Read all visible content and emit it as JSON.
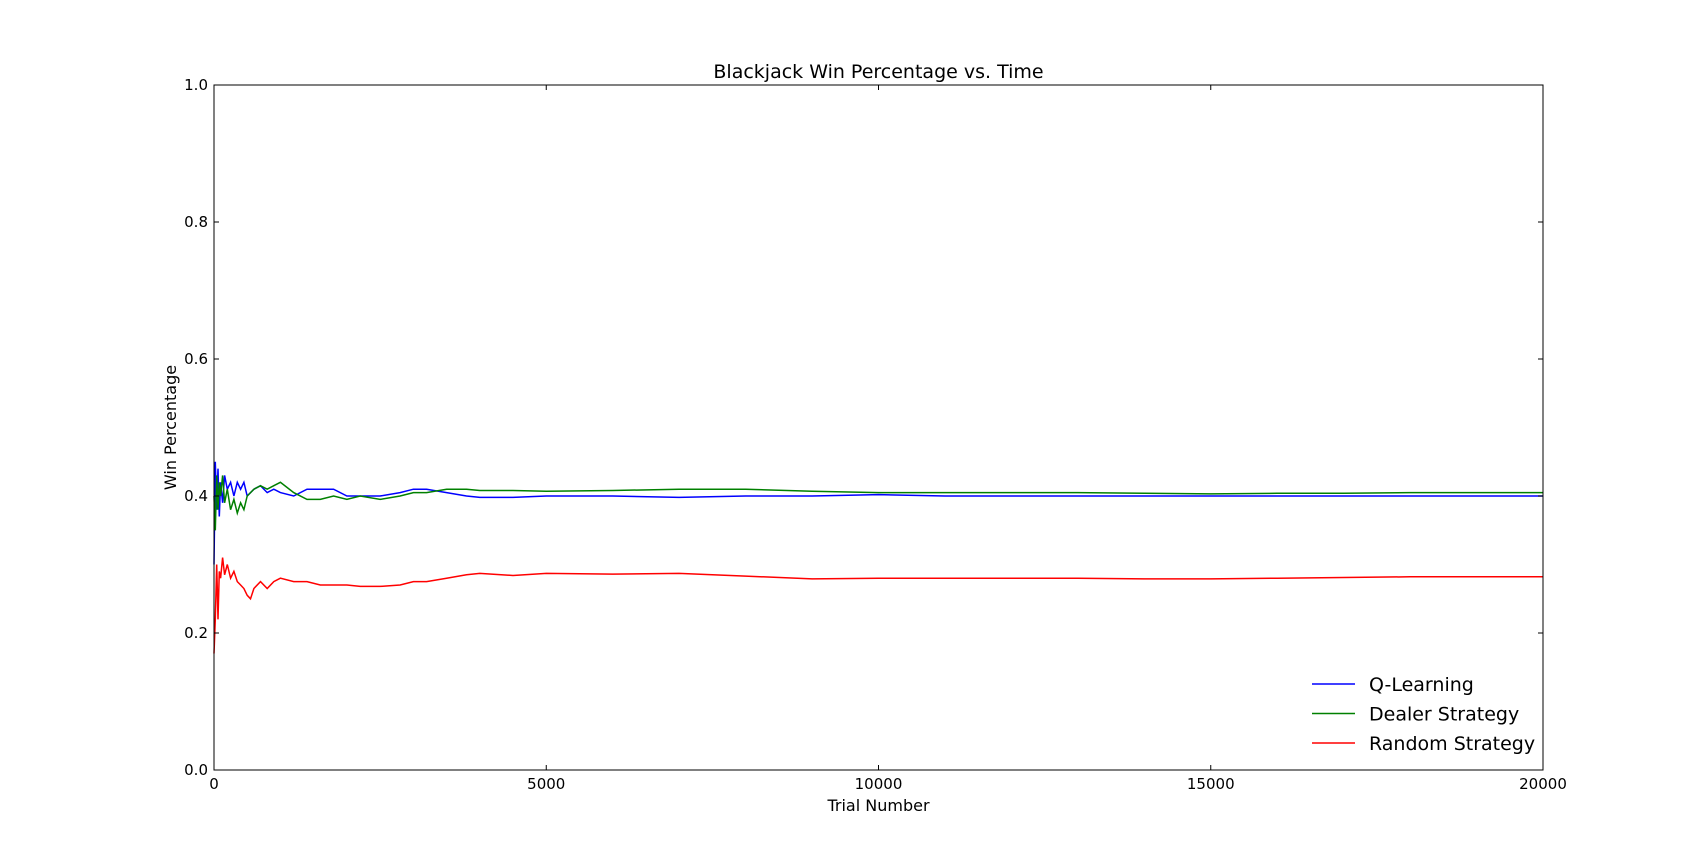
{
  "chart_data": {
    "type": "line",
    "title": "Blackjack Win Percentage vs. Time",
    "xlabel": "Trial Number",
    "ylabel": "Win Percentage",
    "xlim": [
      0,
      20000
    ],
    "ylim": [
      0.0,
      1.0
    ],
    "xticks": [
      "0",
      "5000",
      "10000",
      "15000",
      "20000"
    ],
    "yticks": [
      "0.0",
      "0.2",
      "0.4",
      "0.6",
      "0.8",
      "1.0"
    ],
    "grid": false,
    "legend_position": "lower-right",
    "series": [
      {
        "name": "Q-Learning",
        "color": "#0000ff",
        "x": [
          0,
          20,
          40,
          60,
          80,
          100,
          130,
          160,
          200,
          250,
          300,
          350,
          400,
          450,
          500,
          600,
          700,
          800,
          900,
          1000,
          1200,
          1400,
          1600,
          1800,
          2000,
          2200,
          2500,
          2800,
          3000,
          3200,
          3500,
          3800,
          4000,
          4500,
          5000,
          6000,
          7000,
          8000,
          9000,
          10000,
          11000,
          12000,
          13000,
          14000,
          15000,
          16000,
          17000,
          18000,
          19000,
          20000
        ],
        "y": [
          0.3,
          0.45,
          0.38,
          0.44,
          0.37,
          0.42,
          0.39,
          0.43,
          0.41,
          0.42,
          0.4,
          0.42,
          0.41,
          0.42,
          0.4,
          0.41,
          0.415,
          0.405,
          0.41,
          0.405,
          0.4,
          0.41,
          0.41,
          0.41,
          0.4,
          0.4,
          0.4,
          0.405,
          0.41,
          0.41,
          0.405,
          0.4,
          0.398,
          0.398,
          0.4,
          0.4,
          0.398,
          0.4,
          0.4,
          0.402,
          0.4,
          0.4,
          0.4,
          0.4,
          0.4,
          0.4,
          0.4,
          0.4,
          0.4,
          0.4
        ]
      },
      {
        "name": "Dealer Strategy",
        "color": "#008000",
        "x": [
          0,
          20,
          40,
          60,
          80,
          100,
          130,
          160,
          200,
          250,
          300,
          350,
          400,
          450,
          500,
          600,
          700,
          800,
          900,
          1000,
          1200,
          1400,
          1600,
          1800,
          2000,
          2200,
          2500,
          2800,
          3000,
          3200,
          3500,
          3800,
          4000,
          4500,
          5000,
          6000,
          7000,
          8000,
          9000,
          10000,
          11000,
          12000,
          13000,
          14000,
          15000,
          16000,
          17000,
          18000,
          19000,
          20000
        ],
        "y": [
          0.4,
          0.35,
          0.43,
          0.38,
          0.42,
          0.4,
          0.43,
          0.39,
          0.41,
          0.38,
          0.395,
          0.375,
          0.39,
          0.38,
          0.4,
          0.41,
          0.415,
          0.41,
          0.415,
          0.42,
          0.405,
          0.395,
          0.395,
          0.4,
          0.395,
          0.4,
          0.395,
          0.4,
          0.405,
          0.405,
          0.41,
          0.41,
          0.408,
          0.408,
          0.407,
          0.408,
          0.41,
          0.41,
          0.407,
          0.405,
          0.405,
          0.405,
          0.405,
          0.404,
          0.403,
          0.404,
          0.404,
          0.405,
          0.405,
          0.405
        ]
      },
      {
        "name": "Random Strategy",
        "color": "#ff0000",
        "x": [
          0,
          20,
          40,
          60,
          80,
          100,
          130,
          160,
          200,
          250,
          300,
          350,
          400,
          450,
          500,
          550,
          600,
          700,
          800,
          900,
          1000,
          1200,
          1400,
          1600,
          1800,
          2000,
          2200,
          2500,
          2800,
          3000,
          3200,
          3500,
          3800,
          4000,
          4500,
          5000,
          6000,
          7000,
          8000,
          9000,
          10000,
          11000,
          12000,
          13000,
          14000,
          15000,
          16000,
          17000,
          18000,
          19000,
          20000
        ],
        "y": [
          0.17,
          0.22,
          0.3,
          0.22,
          0.29,
          0.28,
          0.31,
          0.285,
          0.3,
          0.28,
          0.29,
          0.275,
          0.27,
          0.265,
          0.255,
          0.25,
          0.265,
          0.275,
          0.265,
          0.275,
          0.28,
          0.275,
          0.275,
          0.27,
          0.27,
          0.27,
          0.268,
          0.268,
          0.27,
          0.275,
          0.275,
          0.28,
          0.285,
          0.287,
          0.284,
          0.287,
          0.286,
          0.287,
          0.283,
          0.279,
          0.28,
          0.28,
          0.28,
          0.28,
          0.279,
          0.279,
          0.28,
          0.281,
          0.282,
          0.282,
          0.282
        ]
      }
    ]
  }
}
